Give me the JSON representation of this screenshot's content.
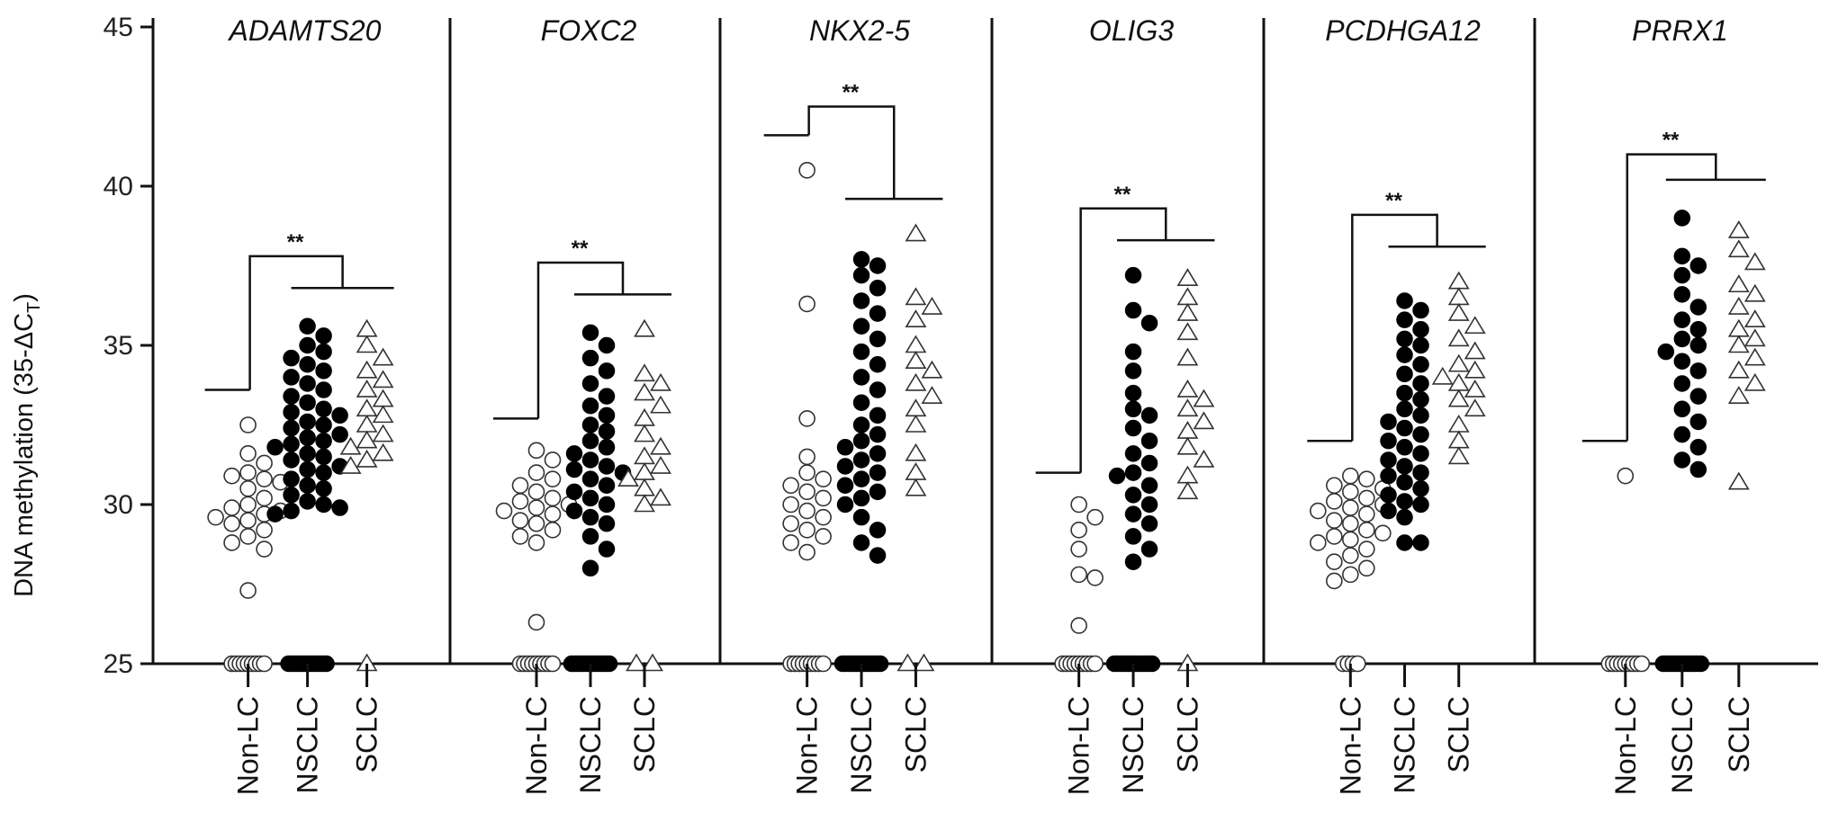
{
  "chart_data": {
    "type": "scatter",
    "ylabel": "DNA methylation (35-ΔC",
    "ylabel_sub": "T",
    "ylabel_close": ")",
    "ylim": [
      25,
      45
    ],
    "yticks": [
      25,
      30,
      35,
      40,
      45
    ],
    "grid": false,
    "groups": [
      "Non-LC",
      "NSCLC",
      "SCLC"
    ],
    "group_markers": {
      "Non-LC": "open-circle",
      "NSCLC": "filled-circle",
      "SCLC": "open-triangle"
    },
    "significance_label": "**",
    "panels": [
      {
        "title": "ADAMTS20",
        "bracket": {
          "nonlc_top": 33.6,
          "top": 37.8,
          "other_top": 36.8
        },
        "series": [
          {
            "group": "Non-LC",
            "values": [
              32.5,
              31.6,
              31.3,
              31.0,
              30.9,
              30.8,
              30.7,
              30.5,
              30.2,
              30.0,
              29.9,
              29.8,
              29.7,
              29.6,
              29.5,
              29.4,
              29.2,
              29.0,
              28.8,
              28.6,
              27.3
            ],
            "floor_count": 9
          },
          {
            "group": "NSCLC",
            "values": [
              35.6,
              35.3,
              35.0,
              34.8,
              34.6,
              34.4,
              34.2,
              34.0,
              33.8,
              33.6,
              33.4,
              33.2,
              33.0,
              32.9,
              32.8,
              32.6,
              32.5,
              32.4,
              32.2,
              32.1,
              32.0,
              31.9,
              31.8,
              31.6,
              31.5,
              31.4,
              31.2,
              31.1,
              31.0,
              30.8,
              30.6,
              30.5,
              30.3,
              30.1,
              30.0,
              29.9,
              29.8,
              29.7
            ],
            "floor_count": 14
          },
          {
            "group": "SCLC",
            "values": [
              35.5,
              35.0,
              34.6,
              34.2,
              33.9,
              33.6,
              33.3,
              33.0,
              32.8,
              32.5,
              32.2,
              32.0,
              31.8,
              31.6,
              31.4,
              31.2
            ],
            "floor_count": 1
          }
        ]
      },
      {
        "title": "FOXC2",
        "bracket": {
          "nonlc_top": 32.7,
          "top": 37.6,
          "other_top": 36.6
        },
        "series": [
          {
            "group": "Non-LC",
            "values": [
              31.7,
              31.4,
              31.0,
              30.8,
              30.6,
              30.4,
              30.2,
              30.1,
              30.0,
              29.9,
              29.8,
              29.7,
              29.5,
              29.4,
              29.2,
              29.0,
              28.8,
              26.3
            ],
            "floor_count": 9
          },
          {
            "group": "NSCLC",
            "values": [
              35.4,
              35.0,
              34.6,
              34.2,
              33.8,
              33.4,
              33.1,
              32.8,
              32.5,
              32.3,
              32.0,
              31.8,
              31.6,
              31.4,
              31.2,
              31.1,
              31.0,
              30.8,
              30.6,
              30.4,
              30.2,
              30.0,
              29.8,
              29.6,
              29.4,
              29.0,
              28.6,
              28.0
            ],
            "floor_count": 14
          },
          {
            "group": "SCLC",
            "values": [
              35.5,
              34.1,
              33.8,
              33.5,
              33.1,
              32.7,
              32.2,
              31.8,
              31.5,
              31.2,
              31.0,
              30.8,
              30.5,
              30.2,
              30.0
            ],
            "floor_count": 2
          }
        ]
      },
      {
        "title": "NKX2-5",
        "bracket": {
          "nonlc_top": 41.6,
          "top": 42.5,
          "other_top": 39.6
        },
        "series": [
          {
            "group": "Non-LC",
            "values": [
              40.5,
              36.3,
              32.7,
              31.5,
              31.0,
              30.8,
              30.6,
              30.4,
              30.2,
              30.0,
              29.8,
              29.6,
              29.4,
              29.2,
              29.0,
              28.8,
              28.5
            ],
            "floor_count": 9
          },
          {
            "group": "NSCLC",
            "values": [
              37.7,
              37.5,
              37.2,
              36.8,
              36.4,
              36.0,
              35.6,
              35.2,
              34.8,
              34.4,
              34.0,
              33.6,
              33.2,
              32.8,
              32.5,
              32.2,
              32.0,
              31.8,
              31.6,
              31.4,
              31.2,
              31.0,
              30.8,
              30.6,
              30.4,
              30.2,
              30.0,
              29.6,
              29.2,
              28.8,
              28.4
            ],
            "floor_count": 14
          },
          {
            "group": "SCLC",
            "values": [
              38.5,
              36.5,
              36.2,
              35.8,
              35.0,
              34.5,
              34.2,
              33.8,
              33.4,
              33.0,
              32.5,
              31.6,
              31.0,
              30.5
            ],
            "floor_count": 2
          }
        ]
      },
      {
        "title": "OLIG3",
        "bracket": {
          "nonlc_top": 31.0,
          "top": 39.3,
          "other_top": 38.3
        },
        "series": [
          {
            "group": "Non-LC",
            "values": [
              30.0,
              29.6,
              29.2,
              28.6,
              27.8,
              27.7,
              26.2
            ],
            "floor_count": 9
          },
          {
            "group": "NSCLC",
            "values": [
              37.2,
              36.1,
              35.7,
              34.8,
              34.2,
              33.5,
              33.0,
              32.8,
              32.4,
              32.0,
              31.6,
              31.3,
              31.0,
              30.9,
              30.6,
              30.3,
              30.0,
              29.7,
              29.4,
              29.0,
              28.6,
              28.2
            ],
            "floor_count": 14
          },
          {
            "group": "SCLC",
            "values": [
              37.1,
              36.5,
              36.0,
              35.4,
              34.6,
              33.6,
              33.3,
              33.0,
              32.6,
              32.3,
              31.8,
              31.4,
              30.9,
              30.4
            ],
            "floor_count": 1
          }
        ]
      },
      {
        "title": "PCDHGA12",
        "bracket": {
          "nonlc_top": 32.0,
          "top": 39.1,
          "other_top": 38.1
        },
        "series": [
          {
            "group": "Non-LC",
            "values": [
              30.9,
              30.8,
              30.6,
              30.5,
              30.4,
              30.2,
              30.1,
              30.0,
              29.9,
              29.8,
              29.7,
              29.5,
              29.4,
              29.2,
              29.1,
              29.0,
              28.9,
              28.8,
              28.6,
              28.4,
              28.2,
              28.0,
              27.8,
              27.6
            ],
            "floor_count": 4
          },
          {
            "group": "NSCLC",
            "values": [
              36.4,
              36.1,
              35.8,
              35.5,
              35.2,
              35.0,
              34.7,
              34.4,
              34.1,
              33.8,
              33.5,
              33.3,
              33.0,
              32.8,
              32.6,
              32.4,
              32.2,
              32.0,
              31.8,
              31.6,
              31.4,
              31.2,
              31.0,
              30.9,
              30.7,
              30.5,
              30.3,
              30.1,
              30.0,
              29.8,
              29.6,
              28.8,
              28.8
            ],
            "floor_count": 0
          },
          {
            "group": "SCLC",
            "values": [
              37.0,
              36.5,
              36.0,
              35.6,
              35.2,
              34.8,
              34.4,
              34.2,
              34.0,
              33.8,
              33.6,
              33.3,
              33.0,
              32.5,
              32.0,
              31.5
            ],
            "floor_count": 0
          }
        ]
      },
      {
        "title": "PRRX1",
        "bracket": {
          "nonlc_top": 32.0,
          "top": 41.0,
          "other_top": 40.2
        },
        "series": [
          {
            "group": "Non-LC",
            "values": [
              30.9
            ],
            "floor_count": 9
          },
          {
            "group": "NSCLC",
            "values": [
              39.0,
              37.8,
              37.5,
              37.2,
              36.6,
              36.2,
              35.8,
              35.5,
              35.2,
              35.0,
              34.8,
              34.5,
              34.2,
              33.8,
              33.4,
              33.0,
              32.6,
              32.2,
              31.8,
              31.4,
              31.1
            ],
            "floor_count": 14
          },
          {
            "group": "SCLC",
            "values": [
              38.6,
              38.0,
              37.6,
              36.9,
              36.6,
              36.2,
              35.8,
              35.5,
              35.2,
              35.0,
              34.6,
              34.2,
              33.8,
              33.4,
              30.7
            ],
            "floor_count": 0
          }
        ]
      }
    ]
  }
}
